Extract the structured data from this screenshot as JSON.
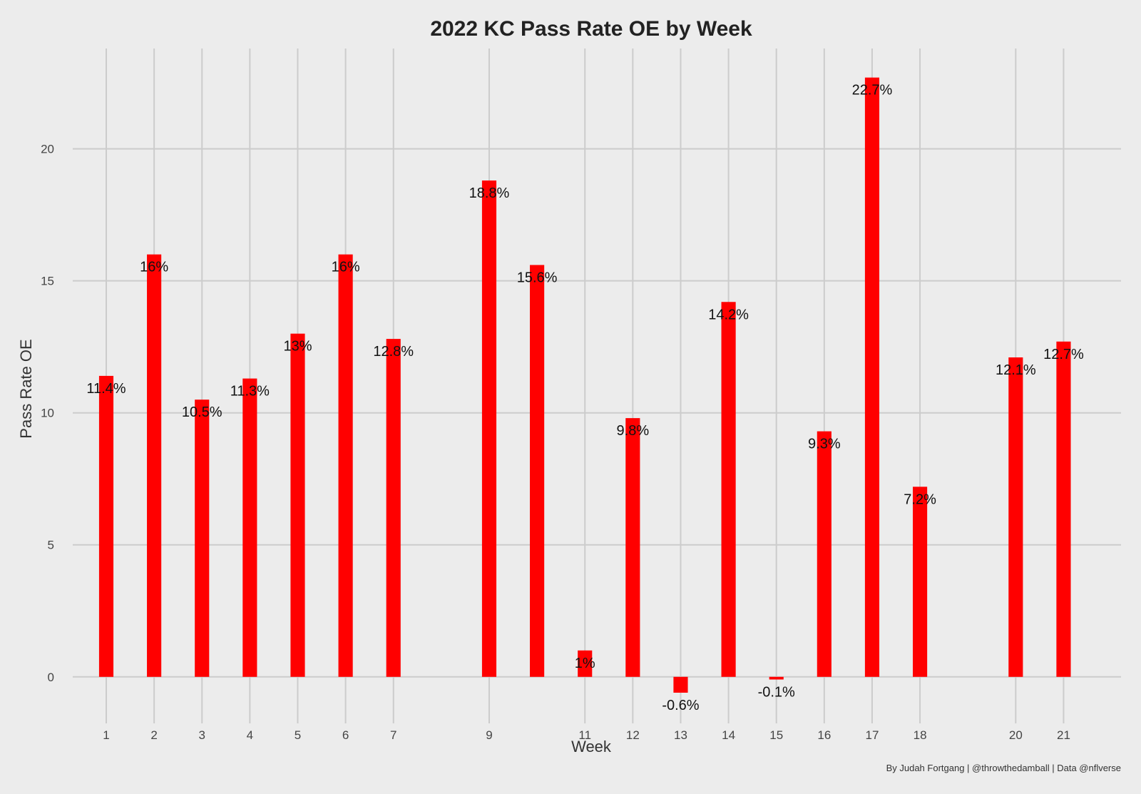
{
  "chart_data": {
    "type": "bar",
    "title": "2022 KC Pass Rate OE by Week",
    "xlabel": "Week",
    "ylabel": "Pass Rate OE",
    "caption": "By Judah Fortgang | @throwthedamball | Data @nflverse",
    "x": [
      1,
      2,
      3,
      4,
      5,
      6,
      7,
      9,
      10,
      11,
      12,
      13,
      14,
      15,
      16,
      17,
      18,
      20,
      21
    ],
    "values": [
      11.4,
      16.0,
      10.5,
      11.3,
      13.0,
      16.0,
      12.8,
      18.8,
      15.6,
      1.0,
      9.8,
      -0.6,
      14.2,
      -0.1,
      9.3,
      22.7,
      7.2,
      12.1,
      12.7
    ],
    "data_labels": [
      "11.4%",
      "16%",
      "10.5%",
      "11.3%",
      "13%",
      "16%",
      "12.8%",
      "18.8%",
      "15.6%",
      "1%",
      "9.8%",
      "-0.6%",
      "14.2%",
      "-0.1%",
      "9.3%",
      "22.7%",
      "7.2%",
      "12.1%",
      "12.7%"
    ],
    "x_ticks": [
      1,
      2,
      3,
      4,
      5,
      6,
      7,
      9,
      11,
      12,
      13,
      14,
      15,
      16,
      17,
      18,
      20,
      21
    ],
    "y_ticks": [
      0,
      5,
      10,
      15,
      20
    ],
    "xlim": [
      0.3,
      22.2
    ],
    "ylim": [
      -1.6,
      23.8
    ],
    "grid": true,
    "colors": {
      "bar": "#ff0000",
      "panel_background": "#ececec",
      "grid": "#cccccc"
    }
  }
}
